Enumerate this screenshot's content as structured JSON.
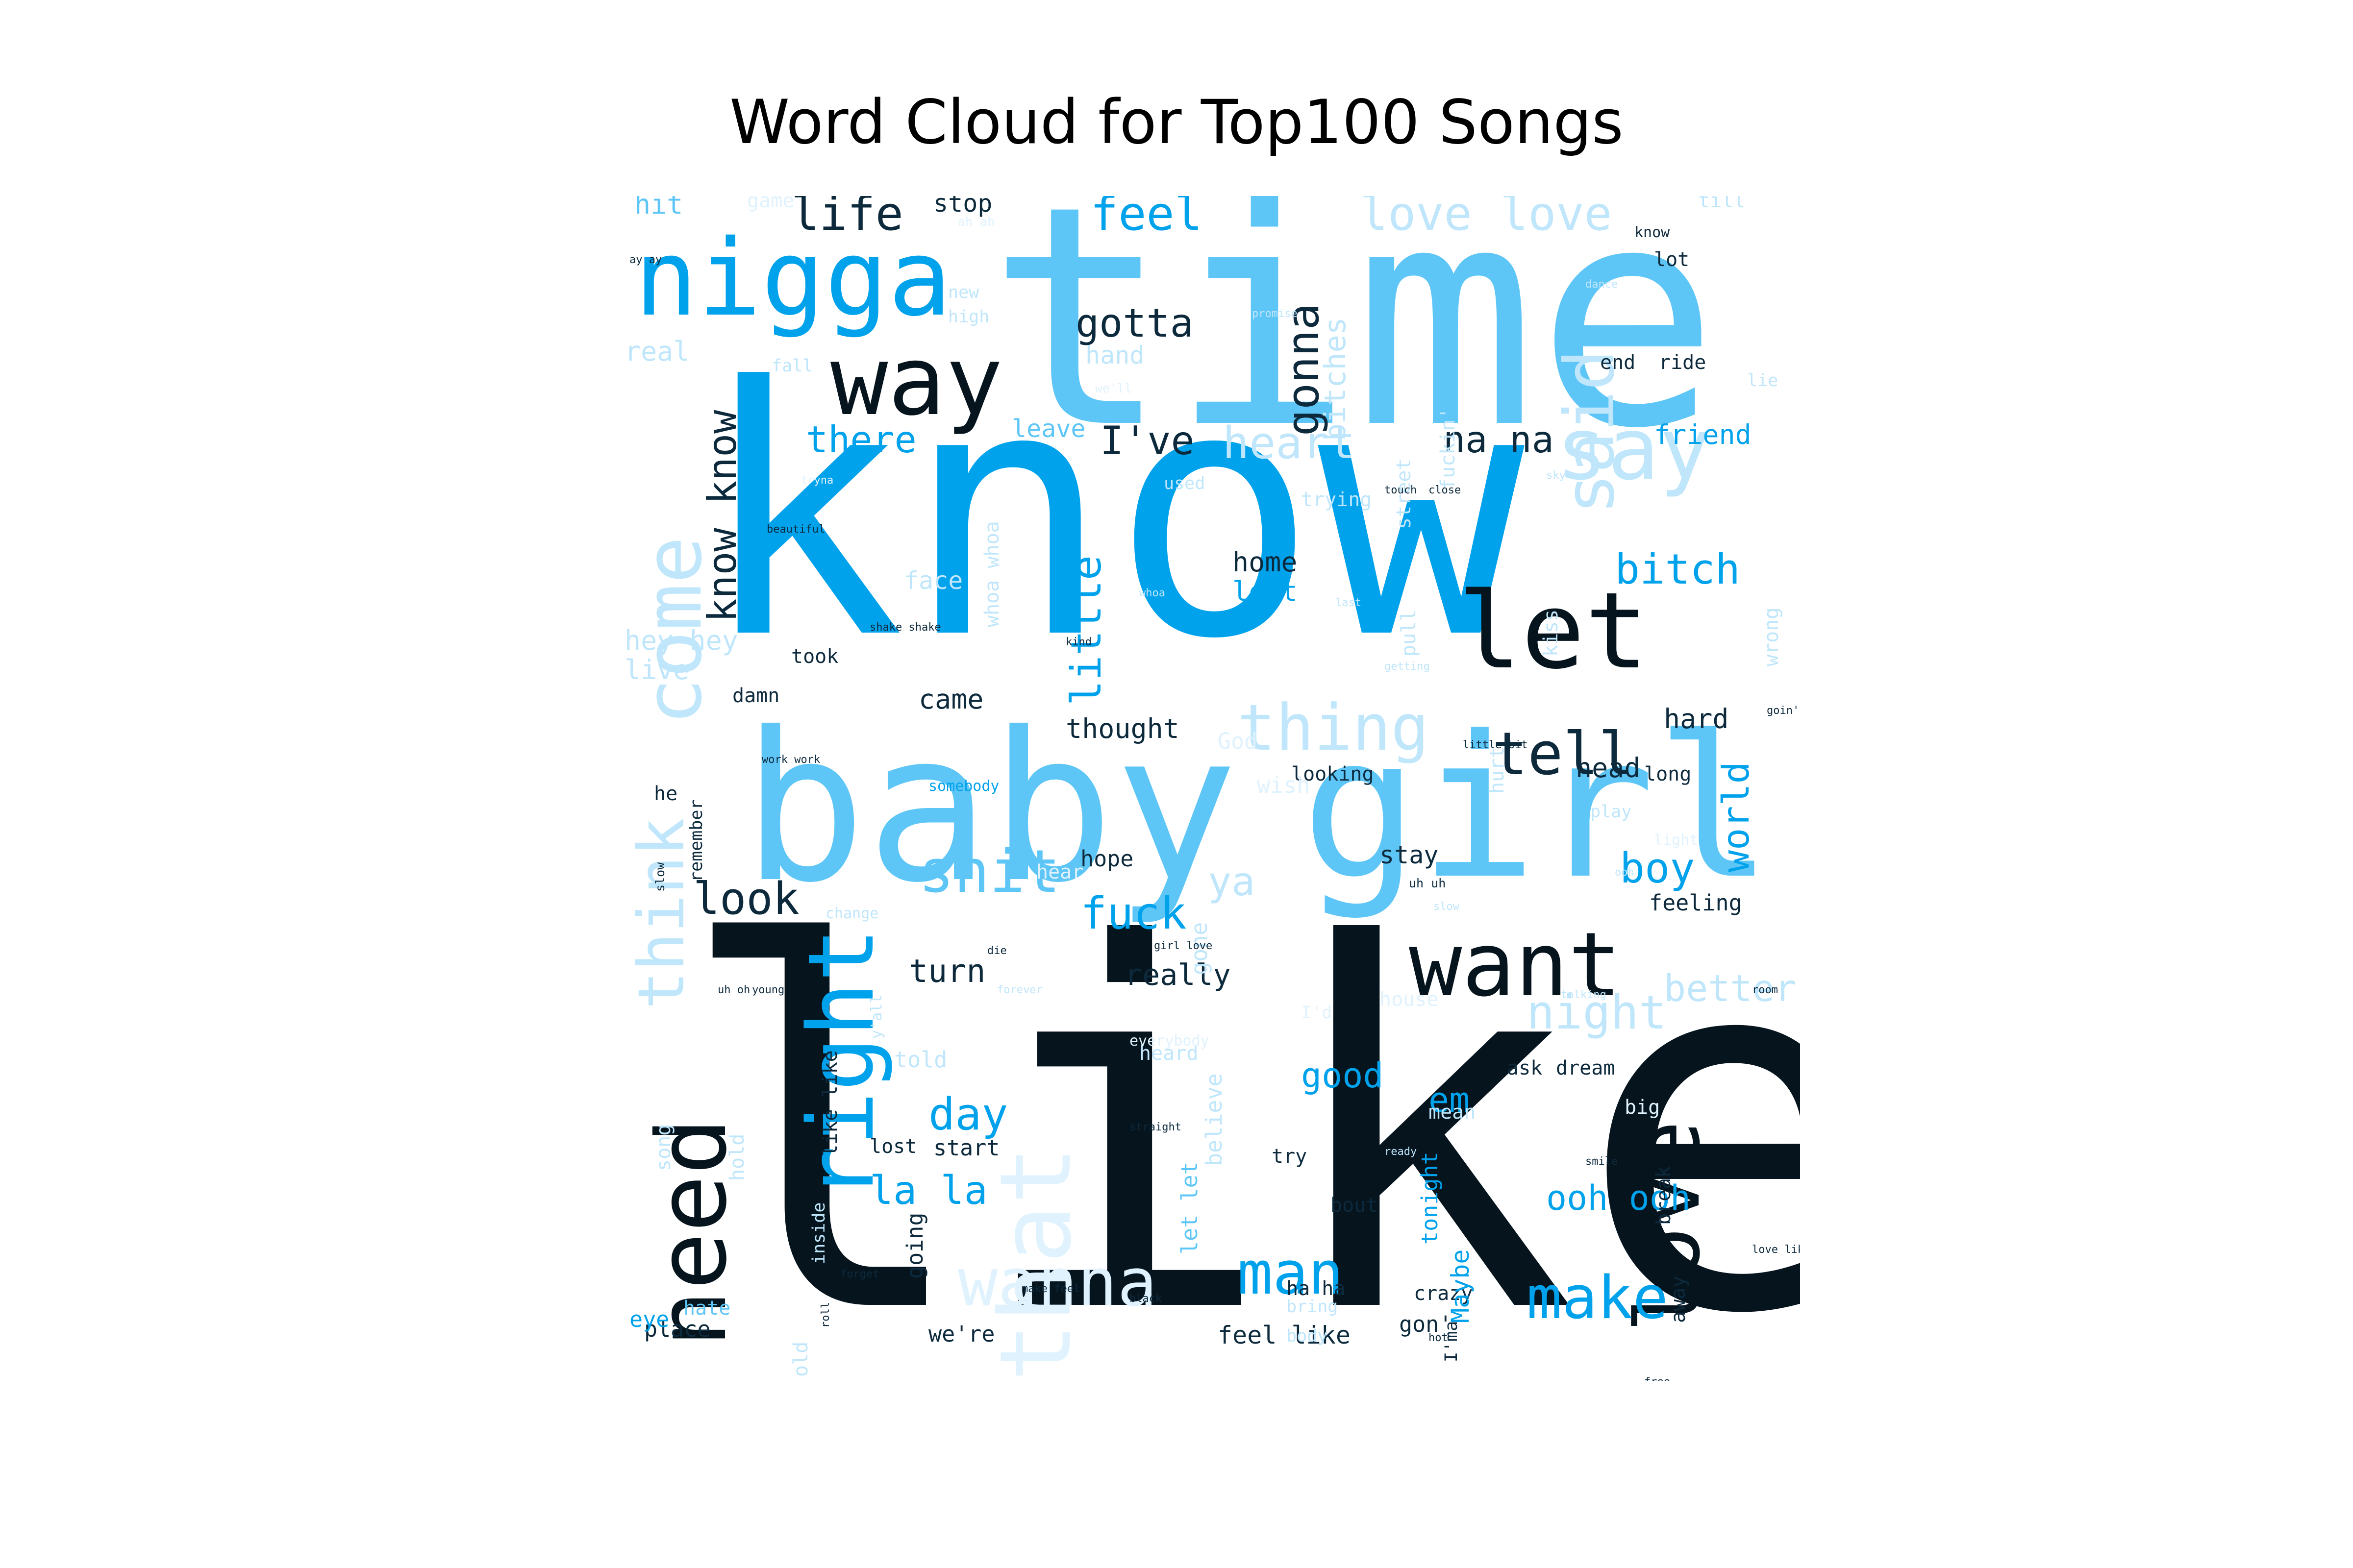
{
  "title": "Word Cloud for Top100 Songs",
  "palette": {
    "black": "#06141e",
    "navy": "#0d2a3d",
    "blue": "#00a2ec",
    "sky": "#5ec6f7",
    "light": "#bfe6fb",
    "pale": "#dff2fd"
  },
  "words": [
    {
      "text": "like",
      "color": "black"
    },
    {
      "text": "know",
      "color": "blue"
    },
    {
      "text": "time",
      "color": "sky"
    },
    {
      "text": "baby",
      "color": "sky"
    },
    {
      "text": "girl",
      "color": "sky"
    },
    {
      "text": "nigga",
      "color": "blue"
    },
    {
      "text": "way",
      "color": "black"
    },
    {
      "text": "let",
      "color": "black"
    },
    {
      "text": "want",
      "color": "black"
    },
    {
      "text": "need",
      "color": "black"
    },
    {
      "text": "love",
      "color": "black"
    },
    {
      "text": "right",
      "color": "blue"
    },
    {
      "text": "that",
      "color": "pale"
    },
    {
      "text": "say",
      "color": "light"
    },
    {
      "text": "said",
      "color": "light"
    },
    {
      "text": "come",
      "color": "light"
    },
    {
      "text": "think",
      "color": "light"
    },
    {
      "text": "thing",
      "color": "light"
    },
    {
      "text": "tell",
      "color": "navy"
    },
    {
      "text": "shit",
      "color": "sky"
    },
    {
      "text": "man",
      "color": "blue"
    },
    {
      "text": "make",
      "color": "blue"
    },
    {
      "text": "wanna",
      "color": "pale"
    },
    {
      "text": "fuck",
      "color": "blue"
    },
    {
      "text": "life",
      "color": "navy"
    },
    {
      "text": "feel",
      "color": "blue"
    },
    {
      "text": "love love",
      "color": "light"
    },
    {
      "text": "gotta",
      "color": "navy"
    },
    {
      "text": "gonna",
      "color": "navy"
    },
    {
      "text": "bitches",
      "color": "light"
    },
    {
      "text": "know know",
      "color": "navy"
    },
    {
      "text": "there",
      "color": "blue"
    },
    {
      "text": "I've",
      "color": "navy"
    },
    {
      "text": "heart",
      "color": "light"
    },
    {
      "text": "na na",
      "color": "navy"
    },
    {
      "text": "friend",
      "color": "blue"
    },
    {
      "text": "bitch",
      "color": "blue"
    },
    {
      "text": "little",
      "color": "blue"
    },
    {
      "text": "home",
      "color": "navy"
    },
    {
      "text": "left",
      "color": "blue"
    },
    {
      "text": "look",
      "color": "navy"
    },
    {
      "text": "boy",
      "color": "blue"
    },
    {
      "text": "world",
      "color": "blue"
    },
    {
      "text": "day",
      "color": "blue"
    },
    {
      "text": "la la",
      "color": "blue"
    },
    {
      "text": "good",
      "color": "blue"
    },
    {
      "text": "night",
      "color": "light"
    },
    {
      "text": "better",
      "color": "light"
    },
    {
      "text": "ooh ooh",
      "color": "blue"
    },
    {
      "text": "turn",
      "color": "navy"
    },
    {
      "text": "really",
      "color": "navy"
    },
    {
      "text": "thought",
      "color": "navy"
    },
    {
      "text": "came",
      "color": "navy"
    },
    {
      "text": "hard",
      "color": "navy"
    },
    {
      "text": "head",
      "color": "navy"
    },
    {
      "text": "stay",
      "color": "navy"
    },
    {
      "text": "hope",
      "color": "navy"
    },
    {
      "text": "feeling",
      "color": "navy"
    },
    {
      "text": "looking",
      "color": "navy"
    },
    {
      "text": "long",
      "color": "navy"
    },
    {
      "text": "ya",
      "color": "light"
    },
    {
      "text": "em",
      "color": "blue"
    },
    {
      "text": "hey hey",
      "color": "light"
    },
    {
      "text": "live",
      "color": "light"
    },
    {
      "text": "real",
      "color": "light"
    },
    {
      "text": "hit",
      "color": "sky"
    },
    {
      "text": "stop",
      "color": "navy"
    },
    {
      "text": "hand",
      "color": "light"
    },
    {
      "text": "leave",
      "color": "sky"
    },
    {
      "text": "face",
      "color": "light"
    },
    {
      "text": "end",
      "color": "navy"
    },
    {
      "text": "ride",
      "color": "navy"
    },
    {
      "text": "lot",
      "color": "navy"
    },
    {
      "text": "till",
      "color": "light"
    },
    {
      "text": "know",
      "color": "navy"
    },
    {
      "text": "lie",
      "color": "light"
    },
    {
      "text": "used",
      "color": "light"
    },
    {
      "text": "start",
      "color": "navy"
    },
    {
      "text": "lost",
      "color": "navy"
    },
    {
      "text": "crazy",
      "color": "navy"
    },
    {
      "text": "place",
      "color": "navy"
    },
    {
      "text": "feel like",
      "color": "navy"
    },
    {
      "text": "gon'",
      "color": "navy"
    },
    {
      "text": "Maybe",
      "color": "blue"
    },
    {
      "text": "tonight",
      "color": "blue"
    },
    {
      "text": "let let",
      "color": "sky"
    },
    {
      "text": "believe",
      "color": "light"
    },
    {
      "text": "gone",
      "color": "light"
    },
    {
      "text": "going",
      "color": "navy"
    },
    {
      "text": "hate",
      "color": "sky"
    },
    {
      "text": "eye",
      "color": "blue"
    },
    {
      "text": "we're",
      "color": "navy"
    },
    {
      "text": "try",
      "color": "navy"
    },
    {
      "text": "bout",
      "color": "navy"
    },
    {
      "text": "told",
      "color": "light"
    },
    {
      "text": "took",
      "color": "navy"
    },
    {
      "text": "damn",
      "color": "navy"
    },
    {
      "text": "remember",
      "color": "navy"
    },
    {
      "text": "ask",
      "color": "navy"
    },
    {
      "text": "dream",
      "color": "navy"
    },
    {
      "text": "mean",
      "color": "light"
    },
    {
      "text": "whoa whoa",
      "color": "light"
    },
    {
      "text": "street",
      "color": "light"
    },
    {
      "text": "fuckin'",
      "color": "light"
    },
    {
      "text": "pull",
      "color": "light"
    },
    {
      "text": "kiss",
      "color": "light"
    },
    {
      "text": "wrong",
      "color": "light"
    },
    {
      "text": "hurt",
      "color": "light"
    },
    {
      "text": "trying",
      "color": "light"
    },
    {
      "text": "fall",
      "color": "light"
    },
    {
      "text": "new",
      "color": "light"
    },
    {
      "text": "high",
      "color": "light"
    },
    {
      "text": "song",
      "color": "light"
    },
    {
      "text": "hold",
      "color": "light"
    },
    {
      "text": "like like",
      "color": "navy"
    },
    {
      "text": "break",
      "color": "navy"
    },
    {
      "text": "away",
      "color": "navy"
    },
    {
      "text": "I'ma",
      "color": "navy"
    },
    {
      "text": "ha ha",
      "color": "navy"
    },
    {
      "text": "old",
      "color": "light"
    },
    {
      "text": "play",
      "color": "light"
    },
    {
      "text": "he",
      "color": "navy"
    },
    {
      "text": "hear",
      "color": "pale"
    },
    {
      "text": "wish",
      "color": "pale"
    },
    {
      "text": "heard",
      "color": "light"
    },
    {
      "text": "inside",
      "color": "light"
    },
    {
      "text": "change",
      "color": "light"
    },
    {
      "text": "y'all",
      "color": "light"
    },
    {
      "text": "body",
      "color": "light"
    },
    {
      "text": "bring",
      "color": "light"
    },
    {
      "text": "light",
      "color": "pale"
    },
    {
      "text": "everybody",
      "color": "pale"
    },
    {
      "text": "God",
      "color": "pale"
    },
    {
      "text": "game",
      "color": "pale"
    },
    {
      "text": "house",
      "color": "pale"
    },
    {
      "text": "I'd",
      "color": "pale"
    },
    {
      "text": "big",
      "color": "pale"
    },
    {
      "text": "ah ah",
      "color": "pale"
    },
    {
      "text": "we'll",
      "color": "pale"
    },
    {
      "text": "tryna",
      "color": "pale"
    },
    {
      "text": "uh uh",
      "color": "navy"
    },
    {
      "text": "uh oh",
      "color": "navy"
    },
    {
      "text": "little bit",
      "color": "navy"
    },
    {
      "text": "girl love",
      "color": "navy"
    },
    {
      "text": "love like",
      "color": "navy"
    },
    {
      "text": "make feel",
      "color": "navy"
    },
    {
      "text": "shake shake",
      "color": "navy"
    },
    {
      "text": "work work",
      "color": "navy"
    },
    {
      "text": "getting",
      "color": "light"
    },
    {
      "text": "touch",
      "color": "navy"
    },
    {
      "text": "close",
      "color": "navy"
    },
    {
      "text": "young",
      "color": "navy"
    },
    {
      "text": "smile",
      "color": "navy"
    },
    {
      "text": "slow",
      "color": "navy"
    },
    {
      "text": "somebody",
      "color": "blue"
    },
    {
      "text": "talking",
      "color": "light"
    },
    {
      "text": "slow",
      "color": "light"
    },
    {
      "text": "room",
      "color": "navy"
    },
    {
      "text": "forever",
      "color": "light"
    },
    {
      "text": "dance",
      "color": "light"
    },
    {
      "text": "promise",
      "color": "light"
    },
    {
      "text": "black",
      "color": "navy"
    },
    {
      "text": "free",
      "color": "navy"
    },
    {
      "text": "die",
      "color": "navy"
    },
    {
      "text": "goin'",
      "color": "navy"
    },
    {
      "text": "straight",
      "color": "navy"
    },
    {
      "text": "ready",
      "color": "light"
    },
    {
      "text": "forget",
      "color": "navy"
    },
    {
      "text": "roll",
      "color": "navy"
    },
    {
      "text": "hot",
      "color": "navy"
    },
    {
      "text": "kind",
      "color": "navy"
    },
    {
      "text": "ay ay",
      "color": "navy"
    },
    {
      "text": "beautiful",
      "color": "navy"
    },
    {
      "text": "whoa",
      "color": "light"
    },
    {
      "text": "ooh",
      "color": "light"
    },
    {
      "text": "sky",
      "color": "light"
    },
    {
      "text": "last",
      "color": "light"
    },
    {
      "text": "soul",
      "color": "light"
    },
    {
      "text": "sleep",
      "color": "blue"
    },
    {
      "text": "cold",
      "color": "light"
    }
  ]
}
